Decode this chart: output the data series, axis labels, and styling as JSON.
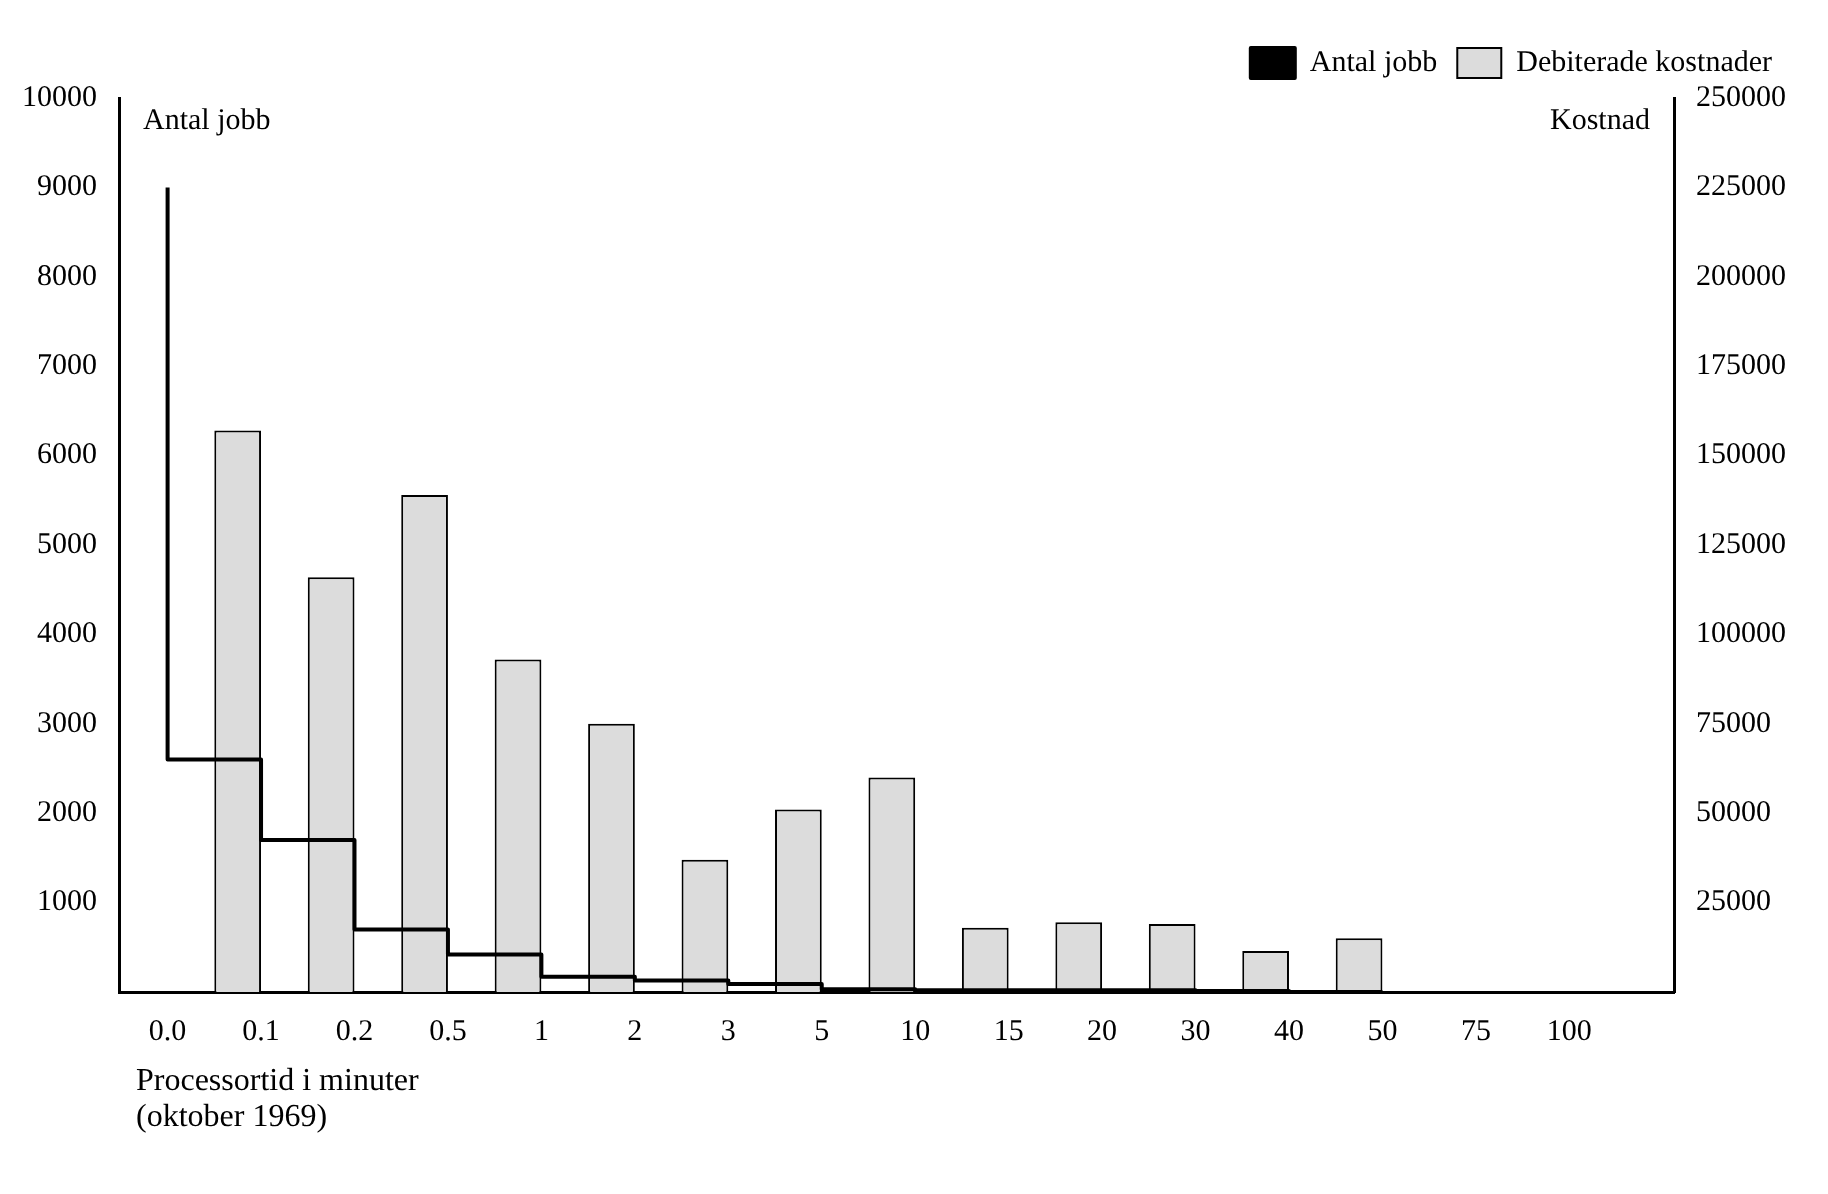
{
  "chart_data": {
    "type": "bar",
    "ylabel": "Antal jobb",
    "y2label": "Kostnad",
    "xlabel": "Processortid i minuter",
    "annotations": [
      "(oktober 1969)"
    ],
    "categories": [
      "0.0",
      "0.1",
      "0.2",
      "0.5",
      "1",
      "2",
      "3",
      "5",
      "10",
      "15",
      "20",
      "30",
      "40",
      "50",
      "75",
      "100"
    ],
    "series": [
      {
        "name": "Antal jobb",
        "type": "step",
        "color": "#000000",
        "values": [
          9000,
          2600,
          1700,
          700,
          420,
          170,
          130,
          90,
          30,
          20,
          20,
          20,
          10,
          0,
          null,
          null
        ]
      },
      {
        "name": "Debiterade kostnader",
        "type": "bar",
        "axis": "y2",
        "color": "#dcdcdc",
        "values": [
          null,
          157000,
          116000,
          139000,
          93000,
          75000,
          37000,
          51000,
          60000,
          18000,
          19500,
          19000,
          11500,
          15000,
          null,
          null
        ]
      }
    ],
    "ylim": [
      0,
      10000
    ],
    "yticks": [
      1000,
      2000,
      3000,
      4000,
      5000,
      6000,
      7000,
      8000,
      9000,
      10000
    ],
    "y2lim": [
      0,
      250000
    ],
    "y2ticks": [
      25000,
      50000,
      75000,
      100000,
      125000,
      150000,
      175000,
      200000,
      225000,
      250000
    ],
    "grid": false,
    "legend": "top right"
  }
}
